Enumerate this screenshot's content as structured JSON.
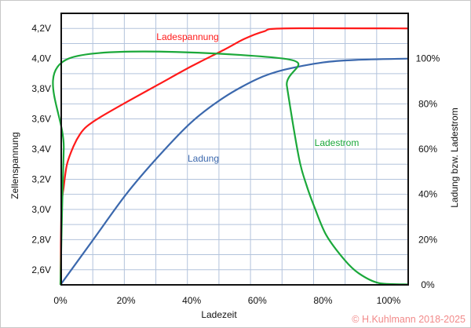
{
  "chart_data": {
    "type": "line",
    "xlabel": "Ladezeit",
    "ylabel_left": "Zellenspannung",
    "ylabel_right": "Ladung bzw. Ladestrom",
    "xlim": [
      0,
      106
    ],
    "ylim_left": [
      2.5,
      4.3
    ],
    "ylim_right": [
      0,
      120
    ],
    "grid": true,
    "x_ticks": [
      {
        "value": 0,
        "label": "0%"
      },
      {
        "value": 20,
        "label": "20%"
      },
      {
        "value": 40,
        "label": "40%"
      },
      {
        "value": 60,
        "label": "60%"
      },
      {
        "value": 80,
        "label": "80%"
      },
      {
        "value": 100,
        "label": "100%"
      }
    ],
    "y_left_ticks": [
      {
        "value": 4.2,
        "label": "4,2V"
      },
      {
        "value": 4.0,
        "label": "4,0V"
      },
      {
        "value": 3.8,
        "label": "3,8V"
      },
      {
        "value": 3.6,
        "label": "3,6V"
      },
      {
        "value": 3.4,
        "label": "3,4V"
      },
      {
        "value": 3.2,
        "label": "3,2V"
      },
      {
        "value": 3.0,
        "label": "3,0V"
      },
      {
        "value": 2.8,
        "label": "2,8V"
      },
      {
        "value": 2.6,
        "label": "2,6V"
      }
    ],
    "y_right_ticks": [
      {
        "value": 100,
        "label": "100%"
      },
      {
        "value": 80,
        "label": "80%"
      },
      {
        "value": 60,
        "label": "60%"
      },
      {
        "value": 40,
        "label": "40%"
      },
      {
        "value": 20,
        "label": "20%"
      },
      {
        "value": 0,
        "label": "0%"
      }
    ],
    "series": [
      {
        "name": "Ladespannung",
        "axis": "left",
        "color": "#ff1a1a",
        "points": [
          [
            0,
            2.5
          ],
          [
            0.3,
            3.0
          ],
          [
            1,
            3.15
          ],
          [
            2,
            3.3
          ],
          [
            4,
            3.42
          ],
          [
            6,
            3.5
          ],
          [
            8,
            3.55
          ],
          [
            12,
            3.61
          ],
          [
            20,
            3.71
          ],
          [
            30,
            3.83
          ],
          [
            40,
            3.95
          ],
          [
            50,
            4.06
          ],
          [
            56,
            4.13
          ],
          [
            62,
            4.18
          ],
          [
            68,
            4.2
          ],
          [
            106,
            4.2
          ]
        ]
      },
      {
        "name": "Ladung",
        "axis": "right",
        "color": "#3b68ad",
        "points": [
          [
            0,
            0
          ],
          [
            10,
            20
          ],
          [
            20,
            40
          ],
          [
            30,
            57
          ],
          [
            40,
            72
          ],
          [
            50,
            83
          ],
          [
            60,
            91
          ],
          [
            68,
            95
          ],
          [
            80,
            98.3
          ],
          [
            90,
            99.4
          ],
          [
            106,
            100
          ]
        ]
      },
      {
        "name": "Ladestrom",
        "axis": "right",
        "color": "#1ba83a",
        "points": [
          [
            0,
            0
          ],
          [
            1,
            60
          ],
          [
            2.5,
            100
          ],
          [
            68,
            100
          ],
          [
            69,
            88
          ],
          [
            72.7,
            56
          ],
          [
            75,
            44
          ],
          [
            77.5,
            34
          ],
          [
            81,
            22
          ],
          [
            86.6,
            11
          ],
          [
            91,
            5
          ],
          [
            97,
            0.8
          ],
          [
            106,
            0.2
          ]
        ]
      }
    ]
  },
  "copyright": "© H.Kuhlmann 2018-2025",
  "colors": {
    "grid": "#b3c3dc",
    "copyright": "#f28a8a"
  }
}
